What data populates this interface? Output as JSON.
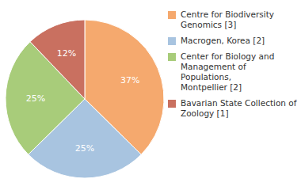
{
  "chart_data": {
    "type": "pie",
    "categories": [
      "Centre for Biodiversity\nGenomics [3]",
      "Macrogen, Korea [2]",
      "Center for Biology and\nManagement of Populations,\nMontpellier [2]",
      "Bavarian State Collection of\nZoology [1]"
    ],
    "values": [
      37,
      25,
      25,
      12
    ],
    "value_labels": [
      "37%",
      "25%",
      "25%",
      "12%"
    ],
    "colors": [
      "#f5a96e",
      "#a8c4e0",
      "#a8cc7a",
      "#c97060"
    ],
    "data_labels": true,
    "legend": "right"
  }
}
